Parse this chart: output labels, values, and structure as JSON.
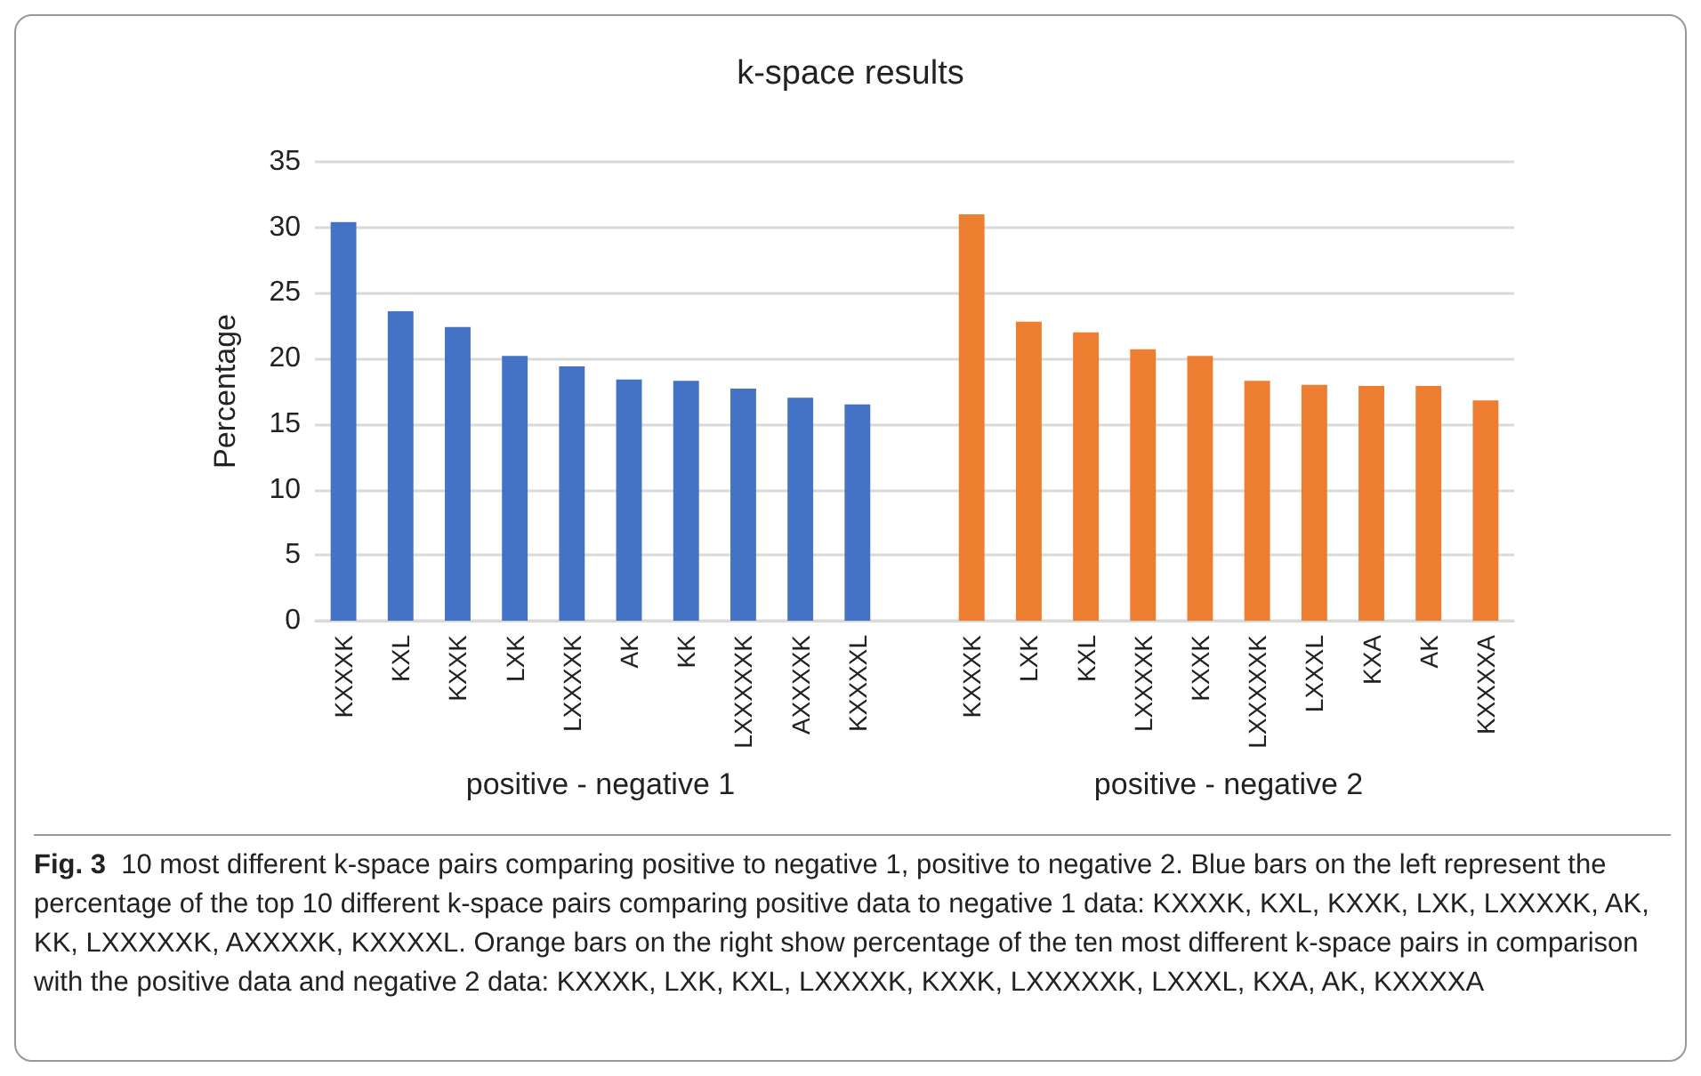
{
  "chart_data": {
    "type": "bar",
    "title": "k-space results",
    "ylabel": "Percentage",
    "categories": [
      "KXXXK",
      "KXL",
      "KXXK",
      "LXK",
      "LXXXXK",
      "AK",
      "KK",
      "LXXXXXK",
      "AXXXXK",
      "KXXXXL",
      null,
      "KXXXK",
      "LXK",
      "KXL",
      "LXXXXK",
      "KXXK",
      "LXXXXXK",
      "LXXXL",
      "KXA",
      "AK",
      "KXXXXA"
    ],
    "series": [
      {
        "color": "#4472c4",
        "values": [
          30.4,
          23.6,
          22.4,
          20.2,
          19.4,
          18.4,
          18.3,
          17.7,
          17.0,
          16.5,
          null,
          null,
          null,
          null,
          null,
          null,
          null,
          null,
          null,
          null,
          null
        ]
      },
      {
        "color": "#ed7d31",
        "values": [
          null,
          null,
          null,
          null,
          null,
          null,
          null,
          null,
          null,
          null,
          null,
          31.0,
          22.8,
          22.0,
          20.7,
          20.2,
          18.3,
          18.0,
          17.9,
          17.9,
          16.8
        ]
      }
    ],
    "ylim": [
      0,
      35
    ],
    "yticks": [
      0,
      5,
      10,
      15,
      20,
      25,
      30,
      35
    ],
    "grid": "y",
    "annotations": [
      "positive - negative 1",
      "positive - negative 2",
      "Fig. 3  10 most different k-space pairs comparing positive to negative 1, positive to negative 2. Blue bars on the left represent the percentage of the top 10 different k-space pairs comparing positive data to negative 1 data: KXXXK, KXL, KXXK, LXK, LXXXXK, AK, KK, LXXXXXK, AXXXXK, KXXXXL. Orange bars on the right show percentage of the ten most different k-space pairs in comparison with the positive data and negative 2 data: KXXXK, LXK, KXL, LXXXXK, KXXK, LXXXXXK, LXXXL, KXA, AK, KXXXXA"
    ]
  }
}
